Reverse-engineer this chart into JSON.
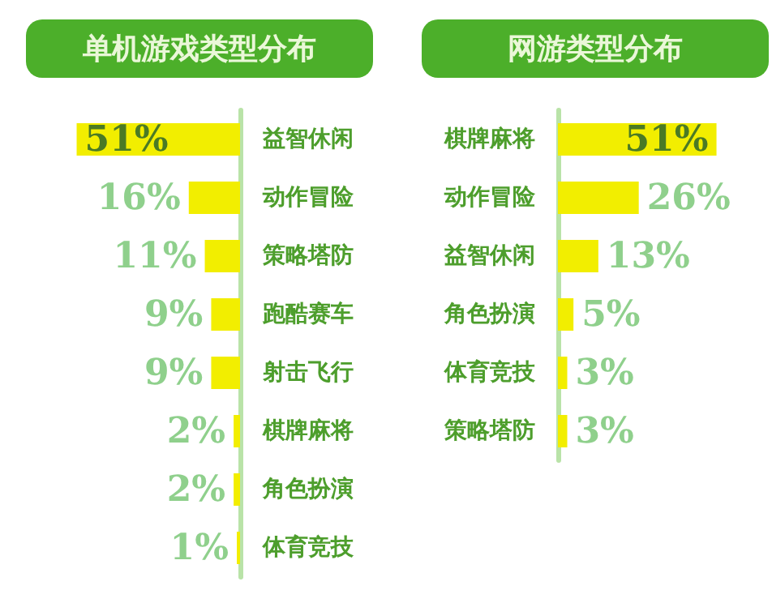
{
  "chart_data": [
    {
      "type": "bar",
      "orientation": "horizontal",
      "title": "单机游戏类型分布",
      "categories": [
        "益智休闲",
        "动作冒险",
        "策略塔防",
        "跑酷赛车",
        "射击飞行",
        "棋牌麻将",
        "角色扮演",
        "体育竞技"
      ],
      "values": [
        51,
        16,
        11,
        9,
        9,
        2,
        2,
        1
      ],
      "value_labels": [
        "51%",
        "16%",
        "11%",
        "9%",
        "9%",
        "2%",
        "2%",
        "1%"
      ],
      "color": "#f2ee00"
    },
    {
      "type": "bar",
      "orientation": "horizontal",
      "title": "网游类型分布",
      "categories": [
        "棋牌麻将",
        "动作冒险",
        "益智休闲",
        "角色扮演",
        "体育竞技",
        "策略塔防"
      ],
      "values": [
        51,
        26,
        13,
        5,
        3,
        3
      ],
      "value_labels": [
        "51%",
        "26%",
        "13%",
        "5%",
        "3%",
        "3%"
      ],
      "color": "#f2ee00"
    }
  ]
}
